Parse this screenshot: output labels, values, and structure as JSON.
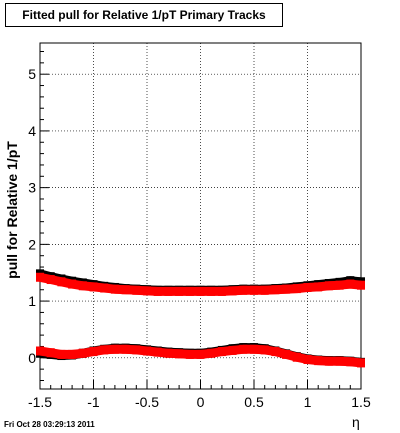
{
  "chart_data": {
    "type": "scatter",
    "title": "Fitted pull for Relative 1/pT  Primary Tracks",
    "xlabel": "η",
    "ylabel": "pull for Relative 1/pT",
    "xlim": [
      -1.5,
      1.5
    ],
    "ylim": [
      -0.55,
      5.55
    ],
    "x_ticks": [
      "-1.5",
      "-1",
      "-0.5",
      "0",
      "0.5",
      "1",
      "1.5"
    ],
    "y_ticks": [
      "0",
      "1",
      "2",
      "3",
      "4",
      "5"
    ],
    "grid": true,
    "series": [
      {
        "color": "#000000",
        "x": [
          -1.5,
          -1.4,
          -1.3,
          -1.2,
          -1.1,
          -1.0,
          -0.9,
          -0.8,
          -0.7,
          -0.6,
          -0.5,
          -0.4,
          -0.3,
          -0.2,
          -0.1,
          0.0,
          0.1,
          0.2,
          0.3,
          0.4,
          0.5,
          0.6,
          0.7,
          0.8,
          0.9,
          1.0,
          1.1,
          1.2,
          1.3,
          1.4,
          1.5
        ],
        "values": [
          1.48,
          1.43,
          1.39,
          1.35,
          1.32,
          1.29,
          1.26,
          1.24,
          1.22,
          1.21,
          1.2,
          1.19,
          1.19,
          1.19,
          1.19,
          1.19,
          1.19,
          1.19,
          1.2,
          1.21,
          1.21,
          1.21,
          1.22,
          1.23,
          1.25,
          1.27,
          1.29,
          1.31,
          1.33,
          1.36,
          1.34
        ]
      },
      {
        "color": "#ff0000",
        "x": [
          -1.5,
          -1.4,
          -1.3,
          -1.2,
          -1.1,
          -1.0,
          -0.9,
          -0.8,
          -0.7,
          -0.6,
          -0.5,
          -0.4,
          -0.3,
          -0.2,
          -0.1,
          0.0,
          0.1,
          0.2,
          0.3,
          0.4,
          0.5,
          0.6,
          0.7,
          0.8,
          0.9,
          1.0,
          1.1,
          1.2,
          1.3,
          1.4,
          1.5
        ],
        "values": [
          1.42,
          1.38,
          1.34,
          1.3,
          1.27,
          1.25,
          1.23,
          1.21,
          1.2,
          1.19,
          1.18,
          1.17,
          1.17,
          1.17,
          1.17,
          1.17,
          1.17,
          1.17,
          1.18,
          1.19,
          1.19,
          1.19,
          1.2,
          1.21,
          1.22,
          1.24,
          1.25,
          1.27,
          1.28,
          1.3,
          1.28
        ]
      },
      {
        "color": "#000000",
        "x": [
          -1.5,
          -1.4,
          -1.3,
          -1.2,
          -1.1,
          -1.0,
          -0.9,
          -0.8,
          -0.7,
          -0.6,
          -0.5,
          -0.4,
          -0.3,
          -0.2,
          -0.1,
          0.0,
          0.1,
          0.2,
          0.3,
          0.4,
          0.5,
          0.6,
          0.7,
          0.8,
          0.9,
          1.0,
          1.1,
          1.2,
          1.3,
          1.4,
          1.5
        ],
        "values": [
          0.08,
          0.06,
          0.04,
          0.05,
          0.08,
          0.12,
          0.15,
          0.17,
          0.17,
          0.16,
          0.14,
          0.12,
          0.1,
          0.09,
          0.08,
          0.08,
          0.1,
          0.13,
          0.16,
          0.18,
          0.18,
          0.16,
          0.12,
          0.07,
          0.02,
          -0.02,
          -0.04,
          -0.05,
          -0.05,
          -0.06,
          -0.08
        ]
      },
      {
        "color": "#ff0000",
        "x": [
          -1.5,
          -1.4,
          -1.3,
          -1.2,
          -1.1,
          -1.0,
          -0.9,
          -0.8,
          -0.7,
          -0.6,
          -0.5,
          -0.4,
          -0.3,
          -0.2,
          -0.1,
          0.0,
          0.1,
          0.2,
          0.3,
          0.4,
          0.5,
          0.6,
          0.7,
          0.8,
          0.9,
          1.0,
          1.1,
          1.2,
          1.3,
          1.4,
          1.5
        ],
        "values": [
          0.12,
          0.09,
          0.06,
          0.06,
          0.08,
          0.11,
          0.14,
          0.15,
          0.15,
          0.14,
          0.12,
          0.1,
          0.08,
          0.07,
          0.06,
          0.06,
          0.08,
          0.11,
          0.13,
          0.15,
          0.15,
          0.14,
          0.11,
          0.06,
          0.01,
          -0.03,
          -0.05,
          -0.06,
          -0.06,
          -0.07,
          -0.09
        ]
      }
    ]
  },
  "footer": {
    "timestamp": "Fri Oct 28 03:29:13 2011"
  }
}
